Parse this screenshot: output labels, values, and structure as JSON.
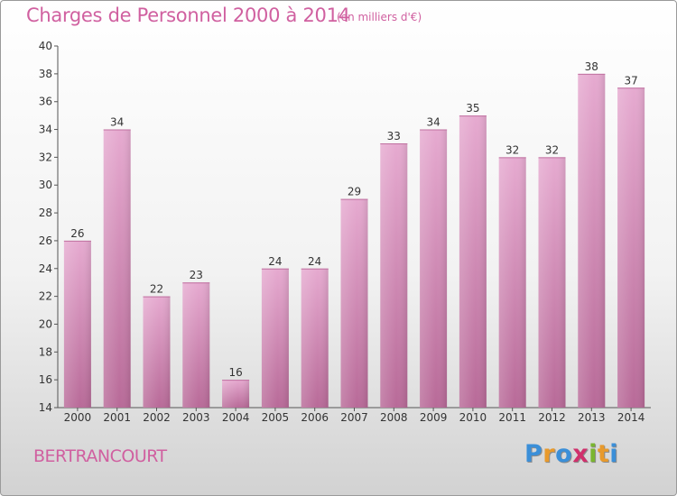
{
  "chart_data": {
    "type": "bar",
    "title": "Charges de Personnel 2000 à 2014",
    "subtitle": "(en milliers d'€)",
    "categories": [
      "2000",
      "2001",
      "2002",
      "2003",
      "2004",
      "2005",
      "2006",
      "2007",
      "2008",
      "2009",
      "2010",
      "2011",
      "2012",
      "2013",
      "2014"
    ],
    "values": [
      26,
      34,
      22,
      23,
      16,
      24,
      24,
      29,
      33,
      34,
      35,
      32,
      32,
      38,
      37
    ],
    "ylim": [
      14,
      40
    ],
    "yticks": [
      14,
      16,
      18,
      20,
      22,
      24,
      26,
      28,
      30,
      32,
      34,
      36,
      38,
      40
    ],
    "grid": false,
    "bar_color": "#d890bc"
  },
  "footer": {
    "city": "BERTRANCOURT",
    "logo_letters": [
      "P",
      "r",
      "o",
      "x",
      "i",
      "t",
      "i"
    ],
    "logo_colors": [
      "#3b8fd8",
      "#e89a2c",
      "#3b8fd8",
      "#d0306c",
      "#7ab52f",
      "#e89a2c",
      "#3b8fd8"
    ]
  }
}
